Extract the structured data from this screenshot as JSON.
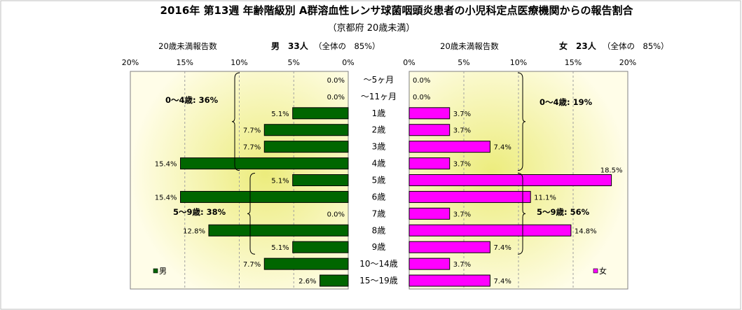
{
  "title": "2016年 第13週 年齢階級別 A群溶血性レンサ球菌咽頭炎患者の小児科定点医療機関からの報告割合",
  "subtitle": "（京都府 20歳未満）",
  "left_header": {
    "count_label": "20歳未満報告数",
    "summary": "男　33人",
    "share": "（全体の　85%）"
  },
  "right_header": {
    "count_label": "20歳未満報告数",
    "summary": "女　23人",
    "share": "（全体の　85%）"
  },
  "colors": {
    "male": "#006600",
    "female": "#ff00ff",
    "panel_bg": "#fffcd0",
    "glow": "#ecec7c"
  },
  "chart_data": {
    "type": "bar",
    "orientation": "horizontal-pyramid",
    "title": "2016年 第13週 年齢階級別 A群溶血性レンサ球菌咽頭炎患者の小児科定点医療機関からの報告割合",
    "subtitle": "（京都府 20歳未満）",
    "categories": [
      "～5ヶ月",
      "～11ヶ月",
      "1歳",
      "2歳",
      "3歳",
      "4歳",
      "5歳",
      "6歳",
      "7歳",
      "8歳",
      "9歳",
      "10～14歳",
      "15～19歳"
    ],
    "series": [
      {
        "name": "男",
        "values": [
          0.0,
          0.0,
          5.1,
          7.7,
          7.7,
          15.4,
          5.1,
          15.4,
          0.0,
          12.8,
          5.1,
          7.7,
          2.6
        ],
        "labels": [
          "0.0%",
          "0.0%",
          "5.1%",
          "7.7%",
          "7.7%",
          "15.4%",
          "5.1%",
          "15.4%",
          "0.0%",
          "12.8%",
          "5.1%",
          "7.7%",
          "2.6%"
        ]
      },
      {
        "name": "女",
        "values": [
          0.0,
          0.0,
          3.7,
          3.7,
          7.4,
          3.7,
          18.5,
          11.1,
          3.7,
          14.8,
          7.4,
          3.7,
          7.4
        ],
        "labels": [
          "0.0%",
          "0.0%",
          "3.7%",
          "3.7%",
          "7.4%",
          "3.7%",
          "18.5%",
          "11.1%",
          "3.7%",
          "14.8%",
          "7.4%",
          "3.7%",
          "7.4%"
        ]
      }
    ],
    "xlim": [
      0,
      20
    ],
    "xticks": [
      "20%",
      "15%",
      "10%",
      "5%",
      "0%"
    ],
    "xticks_right": [
      "0%",
      "5%",
      "10%",
      "15%",
      "20%"
    ],
    "grid": true,
    "legend": "bottom-inside",
    "annotations": {
      "male": [
        {
          "label": "0～4歳: 36%",
          "from": 0,
          "to": 5
        },
        {
          "label": "5～9歳: 38%",
          "from": 6,
          "to": 10
        }
      ],
      "female": [
        {
          "label": "0～4歳: 19%",
          "from": 0,
          "to": 5
        },
        {
          "label": "5～9歳: 56%",
          "from": 6,
          "to": 10
        }
      ]
    }
  }
}
